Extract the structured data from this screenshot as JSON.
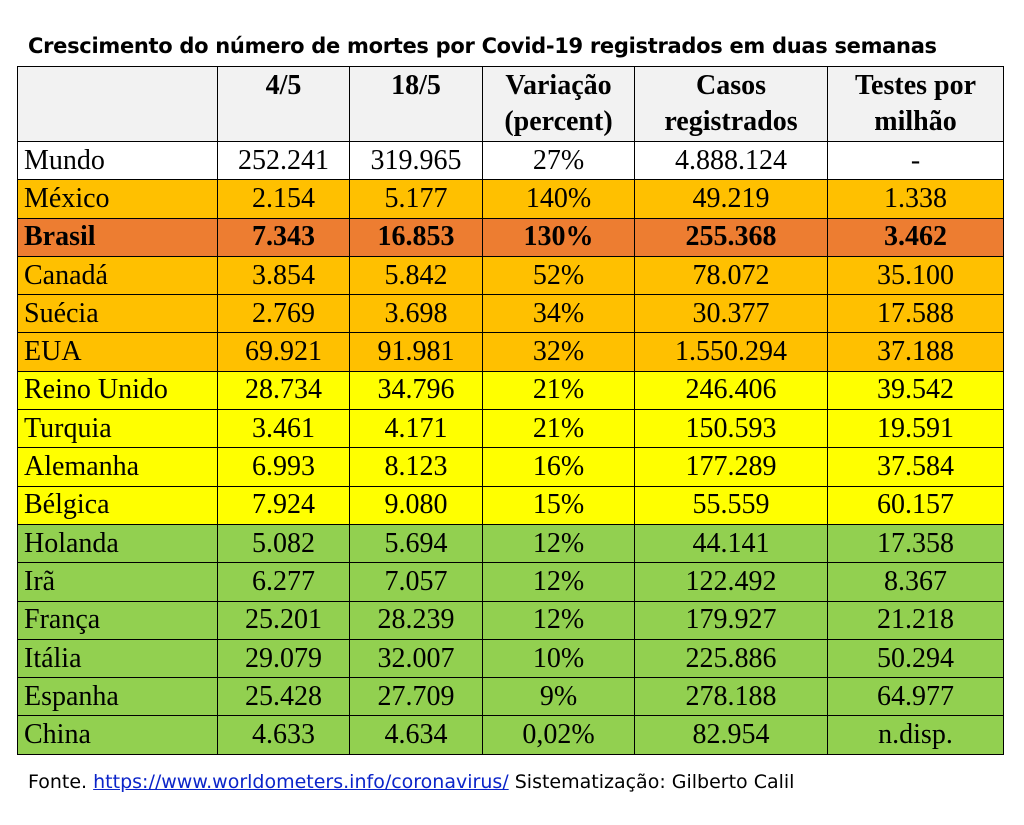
{
  "title": "Crescimento do número de mortes por Covid-19 registrados em duas semanas",
  "table": {
    "headers": [
      {
        "line1": "",
        "line2": ""
      },
      {
        "line1": "4/5",
        "line2": ""
      },
      {
        "line1": "18/5",
        "line2": ""
      },
      {
        "line1": "Variação",
        "line2": "(percent)"
      },
      {
        "line1": "Casos",
        "line2": "registrados"
      },
      {
        "line1": "Testes por",
        "line2": "milhão"
      }
    ],
    "rows": [
      {
        "band": "white",
        "cells": [
          "Mundo",
          "252.241",
          "319.965",
          "27%",
          "4.888.124",
          "-"
        ]
      },
      {
        "band": "orange",
        "cells": [
          "México",
          "2.154",
          "5.177",
          "140%",
          "49.219",
          "1.338"
        ]
      },
      {
        "band": "darkorange",
        "cells": [
          "Brasil",
          "7.343",
          "16.853",
          "130%",
          "255.368",
          "3.462"
        ]
      },
      {
        "band": "orange",
        "cells": [
          "Canadá",
          "3.854",
          "5.842",
          "52%",
          "78.072",
          "35.100"
        ]
      },
      {
        "band": "orange",
        "cells": [
          "Suécia",
          "2.769",
          "3.698",
          "34%",
          "30.377",
          "17.588"
        ]
      },
      {
        "band": "orange",
        "cells": [
          "EUA",
          "69.921",
          "91.981",
          "32%",
          "1.550.294",
          "37.188"
        ]
      },
      {
        "band": "yellow",
        "cells": [
          "Reino Unido",
          "28.734",
          "34.796",
          "21%",
          "246.406",
          "39.542"
        ]
      },
      {
        "band": "yellow",
        "cells": [
          "Turquia",
          "3.461",
          "4.171",
          "21%",
          "150.593",
          "19.591"
        ]
      },
      {
        "band": "yellow",
        "cells": [
          "Alemanha",
          "6.993",
          "8.123",
          "16%",
          "177.289",
          "37.584"
        ]
      },
      {
        "band": "yellow",
        "cells": [
          "Bélgica",
          "7.924",
          "9.080",
          "15%",
          "55.559",
          "60.157"
        ]
      },
      {
        "band": "green",
        "cells": [
          "Holanda",
          "5.082",
          "5.694",
          "12%",
          "44.141",
          "17.358"
        ]
      },
      {
        "band": "green",
        "cells": [
          "Irã",
          "6.277",
          "7.057",
          "12%",
          "122.492",
          "8.367"
        ]
      },
      {
        "band": "green",
        "cells": [
          "França",
          "25.201",
          "28.239",
          "12%",
          "179.927",
          "21.218"
        ]
      },
      {
        "band": "green",
        "cells": [
          "Itália",
          "29.079",
          "32.007",
          "10%",
          "225.886",
          "50.294"
        ]
      },
      {
        "band": "green",
        "cells": [
          "Espanha",
          "25.428",
          "27.709",
          "9%",
          "278.188",
          "64.977"
        ]
      },
      {
        "band": "green",
        "cells": [
          "China",
          "4.633",
          "4.634",
          "0,02%",
          "82.954",
          "n.disp."
        ]
      }
    ]
  },
  "colors": {
    "header": "#f2f2f2",
    "white": "#ffffff",
    "orange": "#ffc000",
    "darkorange": "#ed7d31",
    "yellow": "#ffff00",
    "green": "#92d050",
    "link": "#0b24c9"
  },
  "footer": {
    "prefix": "Fonte. ",
    "link_text": "https://www.worldometers.info/coronavirus/",
    "suffix": " Sistematização: Gilberto Calil"
  }
}
